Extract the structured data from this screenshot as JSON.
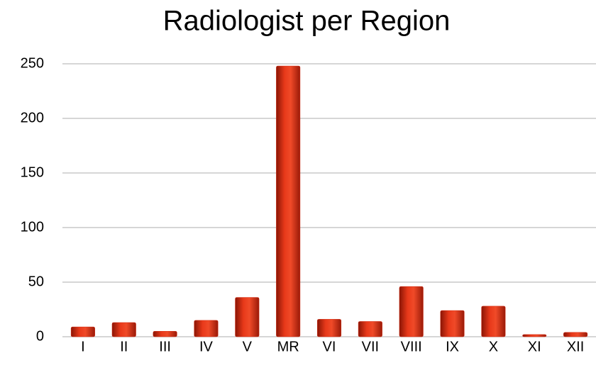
{
  "chart_data": {
    "type": "bar",
    "title": "Radiologist per Region",
    "categories": [
      "I",
      "II",
      "III",
      "IV",
      "V",
      "MR",
      "VI",
      "VII",
      "VIII",
      "IX",
      "X",
      "XI",
      "XII"
    ],
    "values": [
      9,
      13,
      5,
      15,
      36,
      248,
      16,
      14,
      46,
      24,
      28,
      2,
      4
    ],
    "color": "#d42a10",
    "ylim": [
      0,
      250
    ],
    "yticks": [
      0,
      50,
      100,
      150,
      200,
      250
    ],
    "grid": true
  }
}
